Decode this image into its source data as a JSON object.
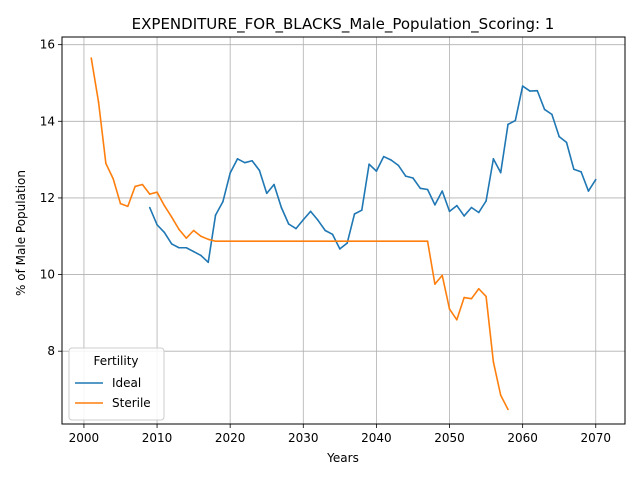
{
  "chart_data": {
    "type": "line",
    "title": "EXPENDITURE_FOR_BLACKS_Male_Population_Scoring: 1",
    "xlabel": "Years",
    "ylabel": "% of Male Population",
    "xlim": [
      1997,
      2074
    ],
    "ylim": [
      6.1,
      16.2
    ],
    "xticks": [
      2000,
      2010,
      2020,
      2030,
      2040,
      2050,
      2060,
      2070
    ],
    "yticks": [
      8,
      10,
      12,
      14,
      16
    ],
    "grid": true,
    "legend": {
      "title": "Fertility",
      "position": "lower-left"
    },
    "series": [
      {
        "name": "Ideal",
        "color": "#1f77b4",
        "x": [
          2009,
          2010,
          2011,
          2012,
          2013,
          2014,
          2015,
          2016,
          2017,
          2018,
          2019,
          2020,
          2021,
          2022,
          2023,
          2024,
          2025,
          2026,
          2027,
          2028,
          2029,
          2030,
          2031,
          2032,
          2033,
          2034,
          2035,
          2036,
          2037,
          2038,
          2039,
          2040,
          2041,
          2042,
          2043,
          2044,
          2045,
          2046,
          2047,
          2048,
          2049,
          2050,
          2051,
          2052,
          2053,
          2054,
          2055,
          2056,
          2057,
          2058,
          2059,
          2060,
          2061,
          2062,
          2063,
          2064,
          2065,
          2066,
          2067,
          2068,
          2069,
          2070
        ],
        "values": [
          11.75,
          11.3,
          11.1,
          10.8,
          10.7,
          10.7,
          10.6,
          10.5,
          10.32,
          11.55,
          11.9,
          12.65,
          13.02,
          12.92,
          12.97,
          12.72,
          12.12,
          12.35,
          11.75,
          11.32,
          11.2,
          11.43,
          11.65,
          11.42,
          11.15,
          11.05,
          10.67,
          10.82,
          11.58,
          11.68,
          12.88,
          12.7,
          13.08,
          12.99,
          12.85,
          12.57,
          12.52,
          12.25,
          12.22,
          11.82,
          12.18,
          11.65,
          11.8,
          11.53,
          11.75,
          11.62,
          11.92,
          13.02,
          12.66,
          13.92,
          14.02,
          14.92,
          14.79,
          14.8,
          14.31,
          14.18,
          13.6,
          13.45,
          12.75,
          12.68,
          12.18,
          12.48
        ]
      },
      {
        "name": "Sterile",
        "color": "#ff7f0e",
        "x": [
          2001,
          2002,
          2003,
          2004,
          2005,
          2006,
          2007,
          2008,
          2009,
          2010,
          2011,
          2012,
          2013,
          2014,
          2015,
          2016,
          2017,
          2018,
          2019,
          2020,
          2021,
          2022,
          2023,
          2024,
          2025,
          2026,
          2027,
          2028,
          2029,
          2030,
          2031,
          2032,
          2033,
          2034,
          2035,
          2036,
          2037,
          2038,
          2039,
          2040,
          2041,
          2042,
          2043,
          2044,
          2045,
          2046,
          2047,
          2048,
          2049,
          2050,
          2051,
          2052,
          2053,
          2054,
          2055,
          2056,
          2057,
          2058
        ],
        "values": [
          15.65,
          14.5,
          12.9,
          12.5,
          11.85,
          11.78,
          12.3,
          12.35,
          12.1,
          12.15,
          11.8,
          11.5,
          11.18,
          10.95,
          11.15,
          11.0,
          10.92,
          10.87,
          10.87,
          10.87,
          10.87,
          10.87,
          10.87,
          10.87,
          10.87,
          10.87,
          10.87,
          10.87,
          10.87,
          10.87,
          10.87,
          10.87,
          10.87,
          10.87,
          10.87,
          10.87,
          10.87,
          10.87,
          10.87,
          10.87,
          10.87,
          10.87,
          10.87,
          10.87,
          10.87,
          10.87,
          10.87,
          9.75,
          9.98,
          9.1,
          8.82,
          9.4,
          9.37,
          9.63,
          9.43,
          7.72,
          6.85,
          6.48
        ]
      }
    ]
  }
}
